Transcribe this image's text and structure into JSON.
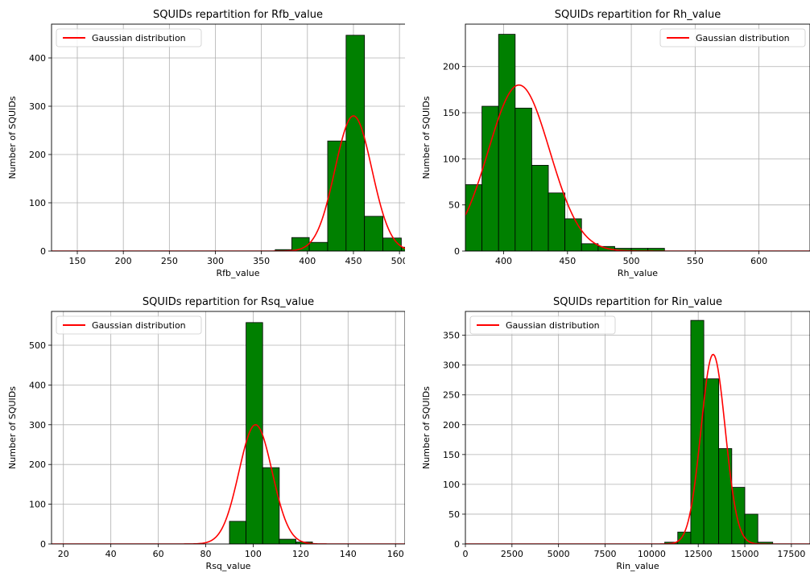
{
  "chart_data": [
    {
      "type": "bar",
      "title": "SQUIDs repartition for Rfb_value",
      "xlabel": "Rfb_value",
      "ylabel": "Number of SQUIDs",
      "xlim": [
        122,
        527
      ],
      "ylim": [
        0,
        470
      ],
      "xticks": [
        150,
        200,
        250,
        300,
        350,
        400,
        450,
        500
      ],
      "yticks": [
        0,
        100,
        200,
        300,
        400
      ],
      "legend": {
        "label": "Gaussian distribution",
        "position": "upper-left"
      },
      "bar_color": "#008000",
      "line_color": "#ff0000",
      "grid": true,
      "bins": [
        {
          "x0": 365,
          "x1": 383,
          "value": 3
        },
        {
          "x0": 383,
          "x1": 402,
          "value": 28
        },
        {
          "x0": 402,
          "x1": 422,
          "value": 18
        },
        {
          "x0": 422,
          "x1": 442,
          "value": 228
        },
        {
          "x0": 442,
          "x1": 462,
          "value": 447
        },
        {
          "x0": 462,
          "x1": 482,
          "value": 72
        },
        {
          "x0": 482,
          "x1": 502,
          "value": 27
        },
        {
          "x0": 502,
          "x1": 527,
          "value": 8
        }
      ],
      "gaussian": {
        "mean": 450,
        "std": 20,
        "peak": 280
      }
    },
    {
      "type": "bar",
      "title": "SQUIDs repartition for Rh_value",
      "xlabel": "Rh_value",
      "ylabel": "Number of SQUIDs",
      "xlim": [
        370,
        640
      ],
      "ylim": [
        0,
        246
      ],
      "xticks": [
        400,
        450,
        500,
        550,
        600
      ],
      "yticks": [
        0,
        50,
        100,
        150,
        200
      ],
      "legend": {
        "label": "Gaussian distribution",
        "position": "upper-right"
      },
      "bar_color": "#008000",
      "line_color": "#ff0000",
      "grid": true,
      "bins": [
        {
          "x0": 370,
          "x1": 383,
          "value": 72
        },
        {
          "x0": 383,
          "x1": 396,
          "value": 157
        },
        {
          "x0": 396,
          "x1": 409,
          "value": 235
        },
        {
          "x0": 409,
          "x1": 422,
          "value": 155
        },
        {
          "x0": 422,
          "x1": 435,
          "value": 93
        },
        {
          "x0": 435,
          "x1": 448,
          "value": 63
        },
        {
          "x0": 448,
          "x1": 461,
          "value": 35
        },
        {
          "x0": 461,
          "x1": 474,
          "value": 8
        },
        {
          "x0": 474,
          "x1": 487,
          "value": 5
        },
        {
          "x0": 487,
          "x1": 500,
          "value": 3
        },
        {
          "x0": 500,
          "x1": 513,
          "value": 3
        },
        {
          "x0": 513,
          "x1": 526,
          "value": 3
        }
      ],
      "gaussian": {
        "mean": 412,
        "std": 24,
        "peak": 180
      }
    },
    {
      "type": "bar",
      "title": "SQUIDs repartition for Rsq_value",
      "xlabel": "Rsq_value",
      "ylabel": "Number of SQUIDs",
      "xlim": [
        15,
        164
      ],
      "ylim": [
        0,
        585
      ],
      "xticks": [
        20,
        40,
        60,
        80,
        100,
        120,
        140,
        160
      ],
      "yticks": [
        0,
        100,
        200,
        300,
        400,
        500
      ],
      "legend": {
        "label": "Gaussian distribution",
        "position": "upper-left"
      },
      "bar_color": "#008000",
      "line_color": "#ff0000",
      "grid": true,
      "bins": [
        {
          "x0": 90,
          "x1": 97,
          "value": 57
        },
        {
          "x0": 97,
          "x1": 104,
          "value": 557
        },
        {
          "x0": 104,
          "x1": 111,
          "value": 192
        },
        {
          "x0": 111,
          "x1": 118,
          "value": 12
        },
        {
          "x0": 118,
          "x1": 125,
          "value": 5
        }
      ],
      "gaussian": {
        "mean": 101,
        "std": 7,
        "peak": 300
      }
    },
    {
      "type": "bar",
      "title": "SQUIDs repartition for Rin_value",
      "xlabel": "Rin_value",
      "ylabel": "Number of SQUIDs",
      "xlim": [
        0,
        18500
      ],
      "ylim": [
        0,
        390
      ],
      "xticks": [
        0,
        2500,
        5000,
        7500,
        10000,
        12500,
        15000,
        17500
      ],
      "yticks": [
        0,
        50,
        100,
        150,
        200,
        250,
        300,
        350
      ],
      "legend": {
        "label": "Gaussian distribution",
        "position": "upper-left"
      },
      "bar_color": "#008000",
      "line_color": "#ff0000",
      "grid": true,
      "bins": [
        {
          "x0": 10700,
          "x1": 11400,
          "value": 3
        },
        {
          "x0": 11400,
          "x1": 12100,
          "value": 20
        },
        {
          "x0": 12100,
          "x1": 12800,
          "value": 375
        },
        {
          "x0": 12800,
          "x1": 13600,
          "value": 277
        },
        {
          "x0": 13600,
          "x1": 14300,
          "value": 160
        },
        {
          "x0": 14300,
          "x1": 15000,
          "value": 95
        },
        {
          "x0": 15000,
          "x1": 15700,
          "value": 50
        },
        {
          "x0": 15700,
          "x1": 16500,
          "value": 3
        }
      ],
      "gaussian": {
        "mean": 13300,
        "std": 650,
        "peak": 318
      }
    }
  ]
}
